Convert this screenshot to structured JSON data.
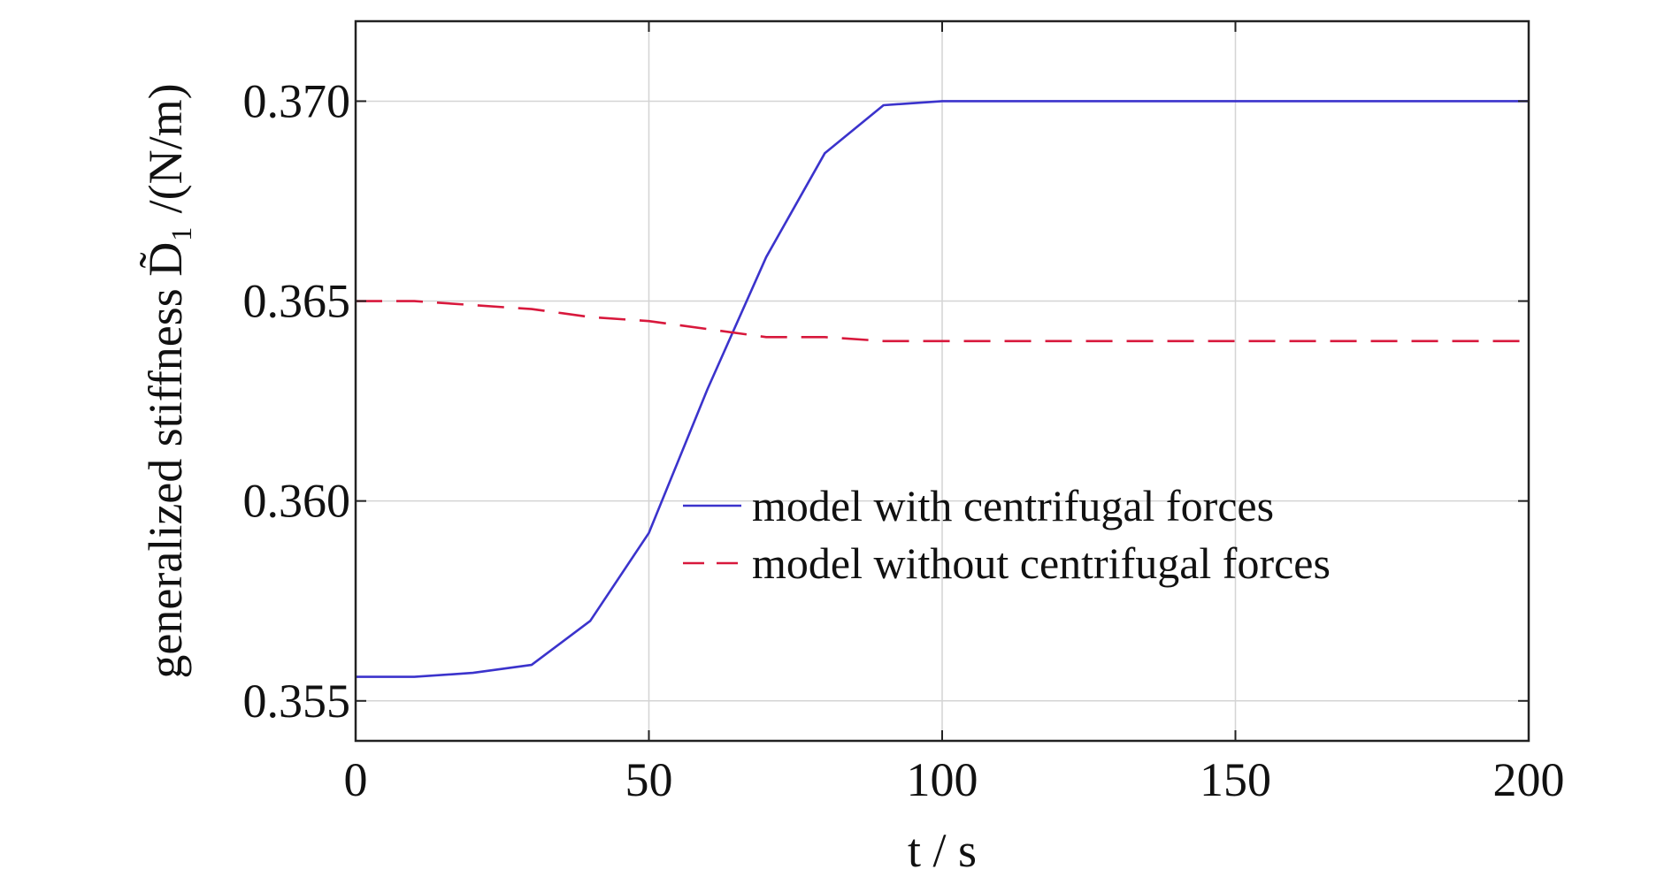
{
  "chart_data": {
    "type": "line",
    "title": "",
    "xlabel": "t / s",
    "ylabel": "generalized stiffness D̃₁ /(N/m)",
    "xlim": [
      0,
      200
    ],
    "ylim": [
      0.354,
      0.372
    ],
    "xticks": [
      "0",
      "50",
      "100",
      "150",
      "200"
    ],
    "yticks": [
      "0.355",
      "0.360",
      "0.365",
      "0.370"
    ],
    "grid": true,
    "legend_position": "center-right",
    "series": [
      {
        "name": "model with centrifugal forces",
        "color": "#3b33cc",
        "dash": "solid",
        "x": [
          0,
          10,
          20,
          30,
          40,
          50,
          60,
          70,
          80,
          90,
          100,
          110,
          120,
          130,
          140,
          150,
          160,
          170,
          180,
          190,
          200
        ],
        "y": [
          0.3556,
          0.3556,
          0.3557,
          0.3559,
          0.357,
          0.3592,
          0.3628,
          0.3661,
          0.3687,
          0.3699,
          0.37,
          0.37,
          0.37,
          0.37,
          0.37,
          0.37,
          0.37,
          0.37,
          0.37,
          0.37,
          0.37
        ]
      },
      {
        "name": "model without centrifugal forces",
        "color": "#d8183c",
        "dash": "dashed",
        "x": [
          0,
          10,
          20,
          30,
          40,
          50,
          60,
          70,
          80,
          90,
          100,
          110,
          120,
          130,
          140,
          150,
          160,
          170,
          180,
          190,
          200
        ],
        "y": [
          0.365,
          0.365,
          0.3649,
          0.3648,
          0.3646,
          0.3645,
          0.3643,
          0.3641,
          0.3641,
          0.364,
          0.364,
          0.364,
          0.364,
          0.364,
          0.364,
          0.364,
          0.364,
          0.364,
          0.364,
          0.364,
          0.364
        ]
      }
    ]
  }
}
